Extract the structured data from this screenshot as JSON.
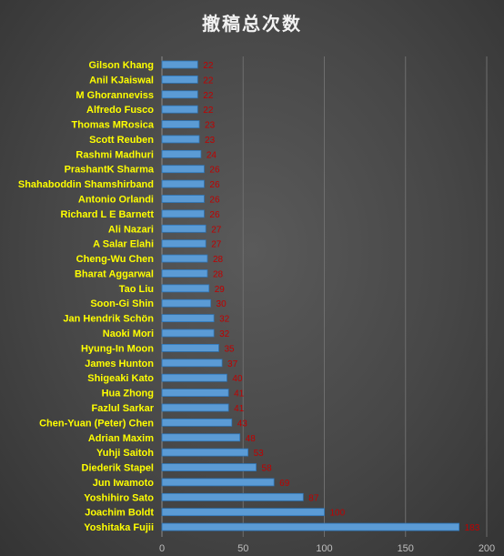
{
  "chart_data": {
    "type": "bar",
    "orientation": "horizontal",
    "title": "撤稿总次数",
    "xlabel": "",
    "ylabel": "",
    "xlim": [
      0,
      200
    ],
    "x_ticks": [
      0,
      50,
      100,
      150,
      200
    ],
    "grid": "vertical",
    "legend": "none",
    "categories": [
      "Gilson Khang",
      "Anil KJaiswal",
      "M Ghoranneviss",
      "Alfredo Fusco",
      "Thomas MRosica",
      "Scott Reuben",
      "Rashmi Madhuri",
      "PrashantK Sharma",
      "Shahaboddin Shamshirband",
      "Antonio Orlandi",
      "Richard L E Barnett",
      "Ali Nazari",
      "A Salar Elahi",
      "Cheng-Wu Chen",
      "Bharat Aggarwal",
      "Tao Liu",
      "Soon-Gi Shin",
      "Jan Hendrik Schön",
      "Naoki Mori",
      "Hyung-In Moon",
      "James Hunton",
      "Shigeaki Kato",
      "Hua Zhong",
      "Fazlul Sarkar",
      "Chen-Yuan (Peter) Chen",
      "Adrian Maxim",
      "Yuhji Saitoh",
      "Diederik Stapel",
      "Jun Iwamoto",
      "Yoshihiro Sato",
      "Joachim Boldt",
      "Yoshitaka Fujii"
    ],
    "values": [
      22,
      22,
      22,
      22,
      23,
      23,
      24,
      26,
      26,
      26,
      26,
      27,
      27,
      28,
      28,
      29,
      30,
      32,
      32,
      35,
      37,
      40,
      41,
      41,
      43,
      48,
      53,
      58,
      69,
      87,
      100,
      183
    ]
  },
  "colors": {
    "bar": "#5b9bd5",
    "bar_edge": "#2e75b6",
    "category_label": "#ffff00",
    "value_label": "#c00000",
    "tick_label": "#bfbfbf",
    "grid": "#6e6e6e",
    "title": "#f2f2f2"
  }
}
